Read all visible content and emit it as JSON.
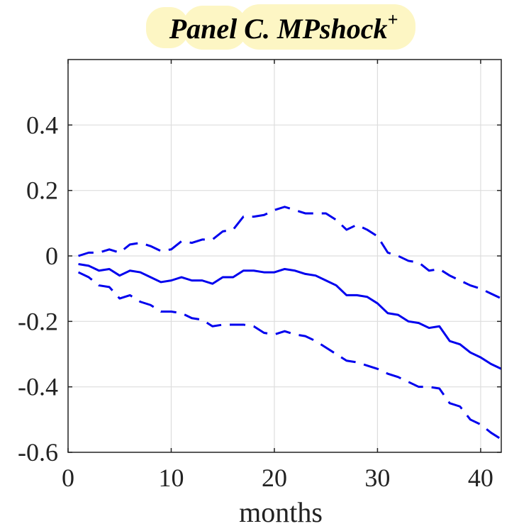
{
  "chart_data": {
    "type": "line",
    "title": "Panel C. MPshock",
    "title_superscript": "+",
    "xlabel": "months",
    "ylabel": "",
    "xlim": [
      0,
      42
    ],
    "ylim": [
      -0.6,
      0.6
    ],
    "xticks": [
      0,
      10,
      20,
      30,
      40
    ],
    "xtick_labels": [
      "0",
      "10",
      "20",
      "30",
      "40"
    ],
    "yticks": [
      -0.6,
      -0.4,
      -0.2,
      0,
      0.2,
      0.4
    ],
    "ytick_labels": [
      "-0.6",
      "-0.4",
      "-0.2",
      "0",
      "0.2",
      "0.4"
    ],
    "grid": true,
    "legend": "none",
    "x": [
      1,
      2,
      3,
      4,
      5,
      6,
      7,
      8,
      9,
      10,
      11,
      12,
      13,
      14,
      15,
      16,
      17,
      18,
      19,
      20,
      21,
      22,
      23,
      24,
      25,
      26,
      27,
      28,
      29,
      30,
      31,
      32,
      33,
      34,
      35,
      36,
      37,
      38,
      39,
      40,
      41,
      42
    ],
    "series": [
      {
        "style": "dashed",
        "color": "#0000ee",
        "values": [
          0.0,
          0.01,
          0.01,
          0.02,
          0.01,
          0.035,
          0.04,
          0.03,
          0.015,
          0.02,
          0.045,
          0.04,
          0.05,
          0.05,
          0.075,
          0.08,
          0.12,
          0.12,
          0.125,
          0.14,
          0.15,
          0.14,
          0.13,
          0.13,
          0.13,
          0.11,
          0.08,
          0.095,
          0.08,
          0.06,
          0.01,
          0.0,
          -0.015,
          -0.02,
          -0.045,
          -0.04,
          -0.06,
          -0.075,
          -0.09,
          -0.1,
          -0.115,
          -0.13
        ]
      },
      {
        "style": "solid",
        "color": "#0000ee",
        "values": [
          -0.025,
          -0.03,
          -0.045,
          -0.04,
          -0.06,
          -0.045,
          -0.05,
          -0.065,
          -0.08,
          -0.075,
          -0.065,
          -0.075,
          -0.075,
          -0.085,
          -0.065,
          -0.065,
          -0.045,
          -0.045,
          -0.05,
          -0.05,
          -0.04,
          -0.045,
          -0.055,
          -0.06,
          -0.075,
          -0.09,
          -0.12,
          -0.12,
          -0.125,
          -0.145,
          -0.175,
          -0.18,
          -0.2,
          -0.205,
          -0.22,
          -0.215,
          -0.26,
          -0.27,
          -0.295,
          -0.31,
          -0.33,
          -0.345
        ]
      },
      {
        "style": "dashed",
        "color": "#0000ee",
        "values": [
          -0.05,
          -0.065,
          -0.09,
          -0.095,
          -0.13,
          -0.12,
          -0.14,
          -0.15,
          -0.17,
          -0.17,
          -0.175,
          -0.19,
          -0.195,
          -0.215,
          -0.21,
          -0.21,
          -0.21,
          -0.215,
          -0.235,
          -0.24,
          -0.23,
          -0.24,
          -0.245,
          -0.26,
          -0.28,
          -0.3,
          -0.32,
          -0.325,
          -0.335,
          -0.345,
          -0.36,
          -0.37,
          -0.385,
          -0.4,
          -0.4,
          -0.405,
          -0.45,
          -0.46,
          -0.5,
          -0.515,
          -0.54,
          -0.56
        ]
      }
    ],
    "colors": {
      "axis": "#222222",
      "grid": "#dddddd",
      "line": "#0000ee",
      "title_highlight": "#fdf6c4"
    }
  }
}
